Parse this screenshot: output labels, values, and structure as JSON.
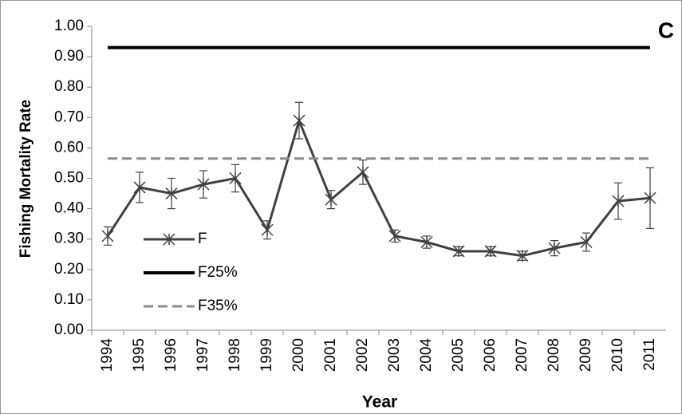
{
  "chart_data": {
    "type": "line",
    "annotation": "C",
    "xlabel": "Year",
    "ylabel": "Fishing Mortality Rate",
    "categories": [
      "1994",
      "1995",
      "1996",
      "1997",
      "1998",
      "1999",
      "2000",
      "2001",
      "2002",
      "2003",
      "2004",
      "2005",
      "2006",
      "2007",
      "2008",
      "2009",
      "2010",
      "2011"
    ],
    "series": [
      {
        "name": "F",
        "color": "#404040",
        "style": "solid-star",
        "values": [
          0.31,
          0.47,
          0.45,
          0.48,
          0.5,
          0.33,
          0.69,
          0.43,
          0.52,
          0.31,
          0.29,
          0.26,
          0.26,
          0.245,
          0.27,
          0.29,
          0.425,
          0.435
        ],
        "errors": [
          0.03,
          0.05,
          0.05,
          0.045,
          0.045,
          0.03,
          0.06,
          0.03,
          0.04,
          0.02,
          0.02,
          0.015,
          0.015,
          0.015,
          0.025,
          0.03,
          0.06,
          0.1
        ]
      },
      {
        "name": "F25%",
        "color": "#000000",
        "style": "solid",
        "values": [
          0.93,
          0.93,
          0.93,
          0.93,
          0.93,
          0.93,
          0.93,
          0.93,
          0.93,
          0.93,
          0.93,
          0.93,
          0.93,
          0.93,
          0.93,
          0.93,
          0.93,
          0.93
        ]
      },
      {
        "name": "F35%",
        "color": "#8c8c8c",
        "style": "dashed",
        "values": [
          0.565,
          0.565,
          0.565,
          0.565,
          0.565,
          0.565,
          0.565,
          0.565,
          0.565,
          0.565,
          0.565,
          0.565,
          0.565,
          0.565,
          0.565,
          0.565,
          0.565,
          0.565
        ]
      }
    ],
    "ylim": [
      0,
      1
    ],
    "yticks": [
      {
        "value": 0,
        "label": "0.00"
      },
      {
        "value": 0.1,
        "label": "0.10"
      },
      {
        "value": 0.2,
        "label": "0.20"
      },
      {
        "value": 0.3,
        "label": "0.30"
      },
      {
        "value": 0.4,
        "label": "0.40"
      },
      {
        "value": 0.5,
        "label": "0.50"
      },
      {
        "value": 0.6,
        "label": "0.60"
      },
      {
        "value": 0.7,
        "label": "0.70"
      },
      {
        "value": 0.8,
        "label": "0.80"
      },
      {
        "value": 0.9,
        "label": "0.90"
      },
      {
        "value": 1,
        "label": "1.00"
      }
    ],
    "legend": "lower-left"
  }
}
